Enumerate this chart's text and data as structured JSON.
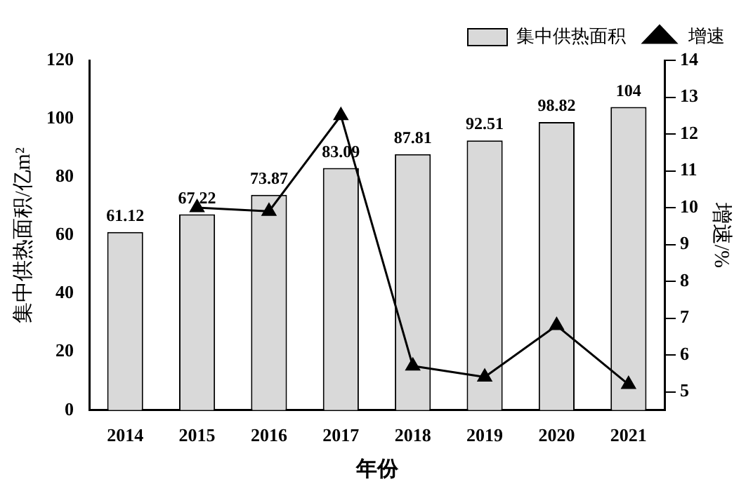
{
  "chart_data": {
    "type": "bar",
    "xlabel": "年份",
    "ylabel": "集中供热面积/亿m²",
    "y2label": "增速/%",
    "categories": [
      "2014",
      "2015",
      "2016",
      "2017",
      "2018",
      "2019",
      "2020",
      "2021"
    ],
    "series": [
      {
        "name": "集中供热面积",
        "color": "#d9d9d9",
        "values": [
          61.12,
          67.22,
          73.87,
          83.09,
          87.81,
          92.51,
          98.82,
          104
        ],
        "value_labels": [
          "61.12",
          "67.22",
          "73.87",
          "83.09",
          "87.81",
          "92.51",
          "98.82",
          "104"
        ]
      },
      {
        "name": "增速",
        "type": "line",
        "axis": "y2",
        "color": "#000000",
        "values": [
          null,
          10.0,
          9.9,
          12.5,
          5.7,
          5.4,
          6.8,
          5.2
        ]
      }
    ],
    "ylim": [
      0,
      120
    ],
    "yticks": [
      0,
      20,
      40,
      60,
      80,
      100,
      120
    ],
    "y2lim": [
      4.5,
      14
    ],
    "y2ticks": [
      5,
      6,
      7,
      8,
      9,
      10,
      11,
      12,
      13,
      14
    ],
    "marker": "triangle",
    "line_style": "solid",
    "legend": "top right",
    "grid": false
  }
}
